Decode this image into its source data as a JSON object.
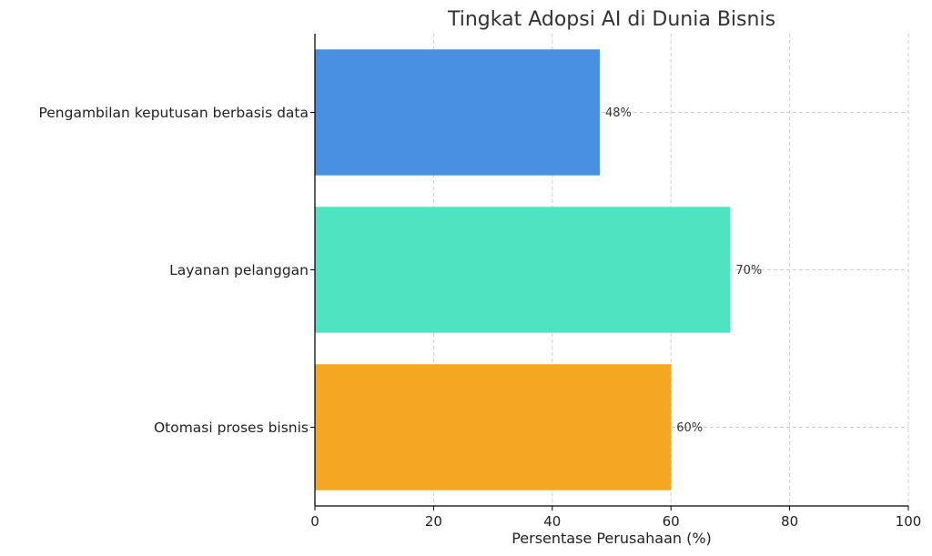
{
  "chart_data": {
    "type": "bar",
    "orientation": "horizontal",
    "title": "Tingkat Adopsi AI di Dunia Bisnis",
    "xlabel": "Persentase Perusahaan (%)",
    "ylabel": "",
    "categories": [
      "Pengambilan keputusan berbasis data",
      "Layanan pelanggan",
      "Otomasi proses bisnis"
    ],
    "values": [
      48,
      70,
      60
    ],
    "data_labels": [
      "48%",
      "70%",
      "60%"
    ],
    "colors": [
      "#4a90e2",
      "#50e3c2",
      "#f5a623"
    ],
    "xlim": [
      0,
      100
    ],
    "xticks": [
      0,
      20,
      40,
      60,
      80,
      100
    ],
    "xtick_labels": [
      "0",
      "20",
      "40",
      "60",
      "80",
      "100"
    ],
    "grid": true
  }
}
